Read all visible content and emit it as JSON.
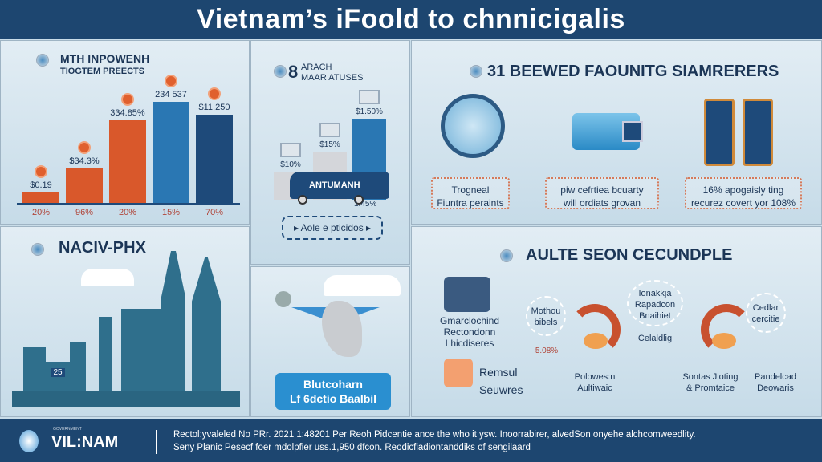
{
  "header": {
    "title": "Vietnam’s iFoold to chnnicigalis"
  },
  "panel_growth": {
    "title_line1": "MTH INPOWENH",
    "title_line2": "TIOGTEM PREECTS"
  },
  "chart_data": [
    {
      "type": "bar",
      "title": "MTH INPOWENH TIOGTEM PREECTS",
      "categories": [
        "20%",
        "96%",
        "20%",
        "15%",
        "70%"
      ],
      "value_labels": [
        "$0.19",
        "$34.3%",
        "334.85%",
        "234 537",
        "$11,250"
      ],
      "values": [
        10,
        34,
        82,
        100,
        87
      ],
      "colors": [
        "#d9582b",
        "#d9582b",
        "#d9582b",
        "#2a77b3",
        "#1e4a7a"
      ],
      "ylim": [
        0,
        100
      ]
    },
    {
      "type": "bar",
      "title": "8 ARACH MAAR ATUSES",
      "categories": [
        "",
        "",
        ""
      ],
      "value_labels": [
        "$10%",
        "$15%",
        "$1.50%"
      ],
      "values": [
        25,
        43,
        72
      ],
      "colors": [
        "#d4d6da",
        "#d4d6da",
        "#2a77b3"
      ],
      "ylim": [
        0,
        100
      ],
      "annotation": "1.45%"
    }
  ],
  "panel_market": {
    "number": "8",
    "title_line1": "ARACH",
    "title_line2": "MAAR ATUSES",
    "bus_label": "ANTUMANH",
    "button": "Aole e pticidos"
  },
  "panel_features": {
    "title": "31 BEEWED FAOUNITG SIAMRERERS",
    "items": [
      {
        "text1": "Trogneal",
        "text2": "Fiuntra peraints"
      },
      {
        "text1": "piw cefrtiea bcuarty",
        "text2": "will ordiats grovan"
      },
      {
        "text1": "16% apogaisly ting",
        "text2": "recurez covert yor 108%"
      }
    ]
  },
  "panel_city": {
    "title": "NACIV-PHX",
    "sign": "25"
  },
  "panel_map": {
    "line1": "Blutcoharn",
    "line2": "Lf 6dctio Baalbil"
  },
  "panel_cycle": {
    "title": "AULTE SEON CECUNDPLE",
    "left": {
      "line1": "Gmarclochind",
      "line2": "Rectondonn",
      "line3": "Lhicdiseres"
    },
    "left2": {
      "line1": "Remsul",
      "line2": "Seuwres"
    },
    "nodes": [
      {
        "line1": "Mothou",
        "line2": "bibels"
      },
      {
        "line1": "Ionakkja",
        "line2": "Rapadcon",
        "line3": "Bnaihiet"
      },
      {
        "line1": "Cedlar",
        "line2": "cercitie"
      }
    ],
    "labels": [
      {
        "line1": "Polowes:n",
        "line2": "Aultiwaic"
      },
      {
        "line1": "Sontas Jioting",
        "line2": "& Promtaice"
      },
      {
        "line1": "Pandelcad",
        "line2": "Deowaris"
      }
    ],
    "mid_label": "Celaldlig",
    "pct": "5.08%"
  },
  "footer": {
    "brand": "VIL:NAM",
    "brand_small": "GOVERNMENT",
    "line1": "Rectol:yvaleled No PRr. 2021 1:48201 Per Reoh Pidcentie ance the who it ysw. Inoorrabirer, alvedSon onyehe alchcomweedlity.",
    "line2": "Seny Planic Pesecf foer mdolpfier uss.1,950 dfcon. Reodicfiadiontanddiks of sengilaard"
  }
}
